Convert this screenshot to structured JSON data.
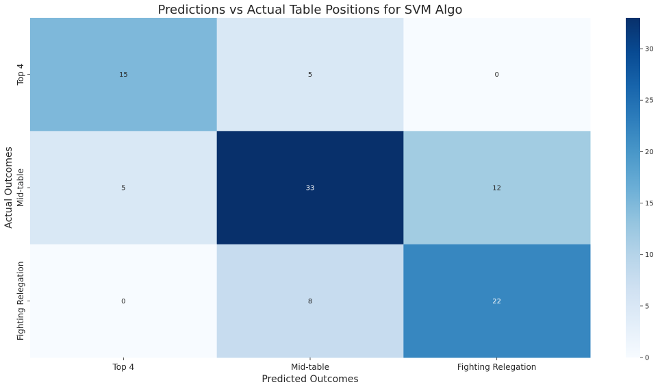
{
  "chart_data": {
    "type": "heatmap",
    "title": "Predictions vs Actual Table Positions for SVM Algo",
    "xlabel": "Predicted Outcomes",
    "ylabel": "Actual Outcomes",
    "x_categories": [
      "Top 4",
      "Mid-table",
      "Fighting Relegation"
    ],
    "y_categories": [
      "Top 4",
      "Mid-table",
      "Fighting Relegation"
    ],
    "values": [
      [
        15,
        5,
        0
      ],
      [
        5,
        33,
        12
      ],
      [
        0,
        8,
        22
      ]
    ],
    "colormap": "Blues",
    "colorbar": {
      "range": [
        0,
        33
      ],
      "ticks": [
        0,
        5,
        10,
        15,
        20,
        25,
        30
      ]
    },
    "annotated": true
  }
}
